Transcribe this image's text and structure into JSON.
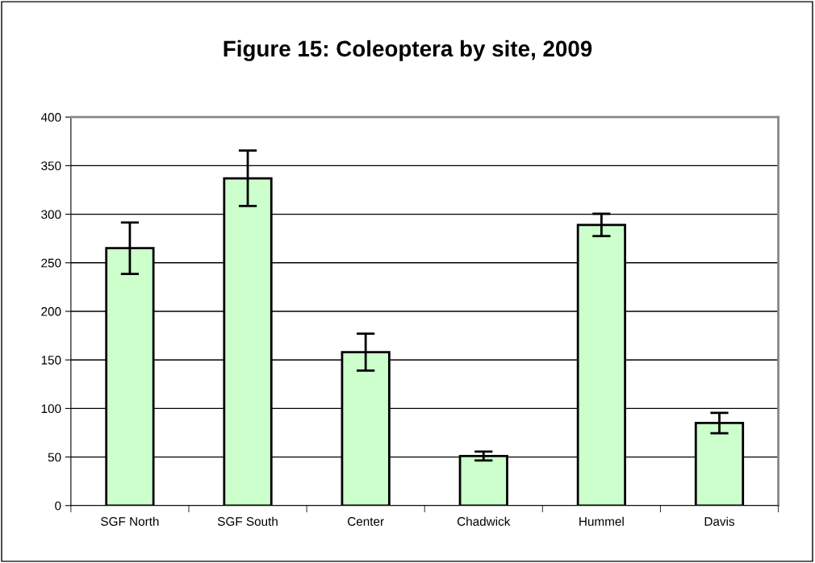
{
  "chart_data": {
    "type": "bar",
    "title": "Figure 15: Coleoptera by site, 2009",
    "categories": [
      "SGF North",
      "SGF South",
      "Center",
      "Chadwick",
      "Hummel",
      "Davis"
    ],
    "values": [
      265,
      337,
      158,
      51,
      289,
      85
    ],
    "errors": [
      26.5,
      28.5,
      19,
      4.5,
      11.5,
      10.5
    ],
    "color": "#ccffcc",
    "ylim": [
      0,
      400
    ],
    "yticks": [
      0,
      50,
      100,
      150,
      200,
      250,
      300,
      350,
      400
    ],
    "grid": "y"
  }
}
